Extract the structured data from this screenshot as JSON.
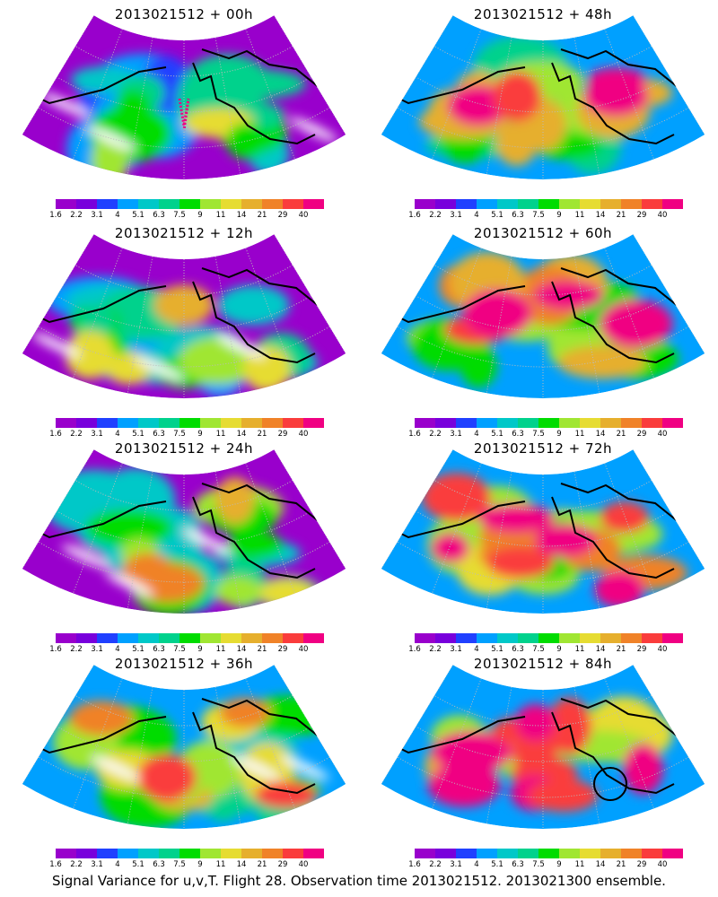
{
  "colorbar": {
    "labels": [
      "1.6",
      "2.2",
      "3.1",
      "4",
      "5.1",
      "6.3",
      "7.5",
      "9",
      "11",
      "14",
      "21",
      "29",
      "40"
    ],
    "colors": [
      "#9900cc",
      "#7800dc",
      "#2040ff",
      "#00a0ff",
      "#00c8c8",
      "#00d28c",
      "#00dc00",
      "#a0e632",
      "#e6dc32",
      "#e6af2d",
      "#f08228",
      "#fa3c3c",
      "#f00082"
    ]
  },
  "panels": [
    {
      "title": "2013021512 + 00h",
      "lead_hours": 0
    },
    {
      "title": "2013021512 + 48h",
      "lead_hours": 48
    },
    {
      "title": "2013021512 + 12h",
      "lead_hours": 12
    },
    {
      "title": "2013021512 + 60h",
      "lead_hours": 60
    },
    {
      "title": "2013021512 + 24h",
      "lead_hours": 24
    },
    {
      "title": "2013021512 + 72h",
      "lead_hours": 72
    },
    {
      "title": "2013021512 + 36h",
      "lead_hours": 36
    },
    {
      "title": "2013021512 + 84h",
      "lead_hours": 84
    }
  ],
  "caption": "Signal Variance for u,v,T. Flight 28. Observation time 2013021512. 2013021300 ensemble."
}
